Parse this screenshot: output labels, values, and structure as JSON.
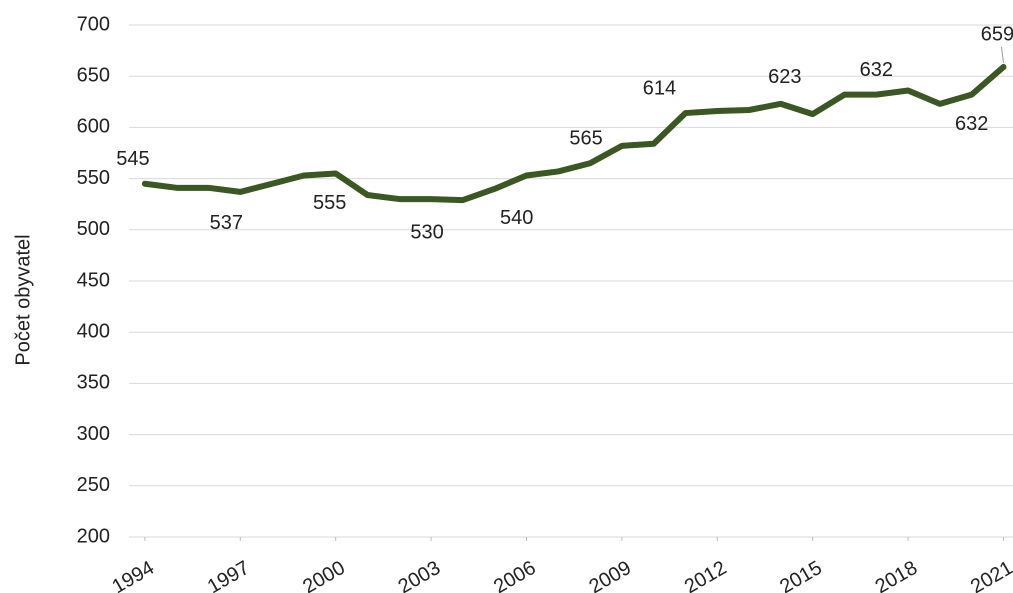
{
  "chart_data": {
    "type": "line",
    "y_label": "Počet obyvatel",
    "x": [
      1994,
      1995,
      1996,
      1997,
      1998,
      1999,
      2000,
      2001,
      2002,
      2003,
      2004,
      2005,
      2006,
      2007,
      2008,
      2009,
      2010,
      2011,
      2012,
      2013,
      2014,
      2015,
      2016,
      2017,
      2018,
      2019,
      2020,
      2021
    ],
    "series": [
      {
        "name": "Počet obyvatel",
        "color": "#3b5723",
        "values": [
          545,
          541,
          541,
          537,
          545,
          553,
          555,
          534,
          530,
          530,
          529,
          540,
          553,
          557,
          565,
          582,
          584,
          614,
          616,
          617,
          623,
          613,
          632,
          632,
          636,
          623,
          632,
          659
        ],
        "value_labels": [
          "545",
          null,
          null,
          "537",
          null,
          null,
          "555",
          null,
          null,
          "530",
          null,
          "540",
          null,
          null,
          "565",
          null,
          null,
          "614",
          null,
          null,
          "623",
          null,
          null,
          "632",
          null,
          null,
          "632",
          "659"
        ]
      }
    ],
    "xlim": [
      1993.5,
      2021.3
    ],
    "xticks": [
      1994,
      1997,
      2000,
      2003,
      2006,
      2009,
      2012,
      2015,
      2018,
      2021
    ],
    "ylim": [
      200,
      700
    ],
    "yticks": [
      200,
      250,
      300,
      350,
      400,
      450,
      500,
      550,
      600,
      650,
      700
    ],
    "grid": true
  }
}
